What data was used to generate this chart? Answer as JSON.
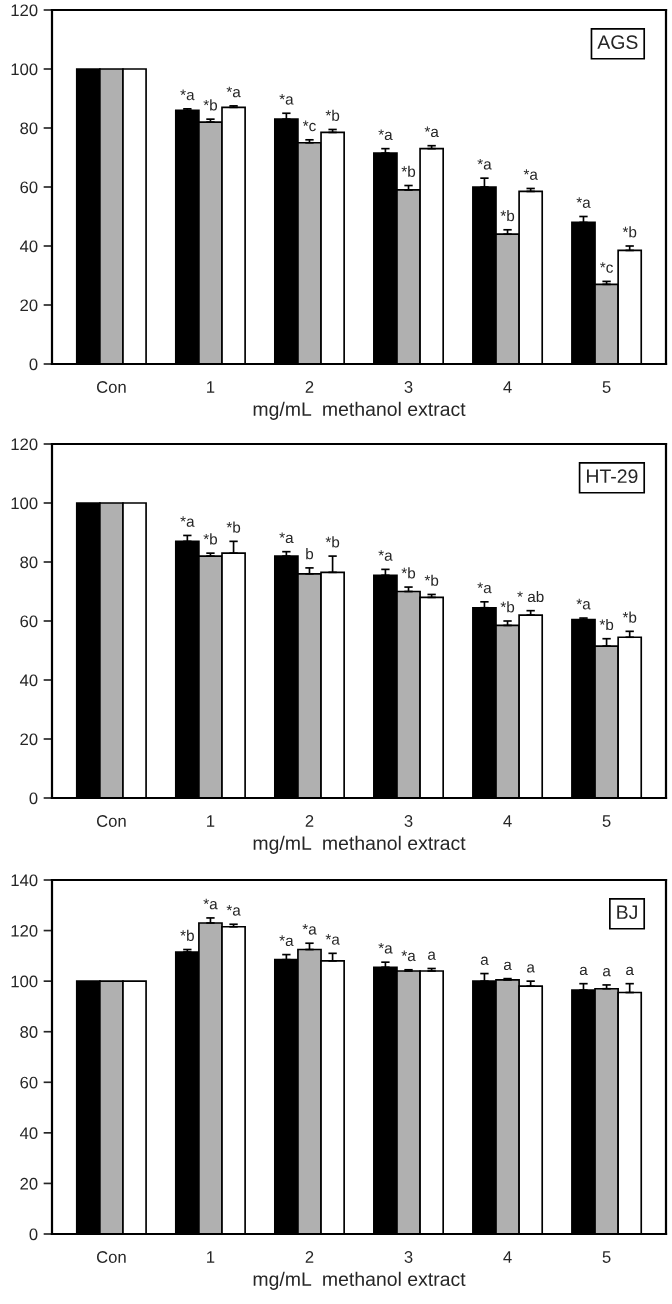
{
  "chart_data": [
    {
      "type": "bar",
      "title": "AGS",
      "xlabel": "mg/mL  methanol extract",
      "categories": [
        "Con",
        "1",
        "2",
        "3",
        "4",
        "5"
      ],
      "ylim": [
        0,
        120
      ],
      "yticks": [
        0,
        20,
        40,
        60,
        80,
        100,
        120
      ],
      "grid": false,
      "legend": false,
      "series": [
        {
          "color": "#000000",
          "values": [
            100,
            86,
            83,
            71.5,
            60,
            48
          ],
          "errors": [
            null,
            0.5,
            2,
            1.5,
            3,
            2
          ],
          "value_labels": [
            null,
            "*a",
            "*a",
            "*a",
            "*a",
            "*a"
          ]
        },
        {
          "color": "#b0b0b0",
          "values": [
            100,
            82,
            75,
            59,
            44,
            27
          ],
          "errors": [
            null,
            1,
            1,
            1.5,
            1.5,
            1
          ],
          "value_labels": [
            null,
            "*b",
            "*c",
            "*b",
            "*b",
            "*c"
          ]
        },
        {
          "color": "#ffffff",
          "values": [
            100,
            87,
            78.5,
            73,
            58.5,
            38.5
          ],
          "errors": [
            null,
            0.5,
            1,
            1,
            1,
            1.5
          ],
          "value_labels": [
            null,
            "*a",
            "*b",
            "*a",
            "*a",
            "*b"
          ]
        }
      ]
    },
    {
      "type": "bar",
      "title": "HT-29",
      "xlabel": "mg/mL  methanol extract",
      "categories": [
        "Con",
        "1",
        "2",
        "3",
        "4",
        "5"
      ],
      "ylim": [
        0,
        120
      ],
      "yticks": [
        0,
        20,
        40,
        60,
        80,
        100,
        120
      ],
      "grid": false,
      "legend": false,
      "series": [
        {
          "color": "#000000",
          "values": [
            100,
            87,
            82,
            75.5,
            64.5,
            60.5
          ],
          "errors": [
            null,
            2,
            1.5,
            2,
            2,
            0.5
          ],
          "value_labels": [
            null,
            "*a",
            "*a",
            "*a",
            "*a",
            "*a"
          ]
        },
        {
          "color": "#b0b0b0",
          "values": [
            100,
            82,
            76,
            70,
            58.5,
            51.5
          ],
          "errors": [
            null,
            1,
            2,
            1.5,
            1.5,
            2.5
          ],
          "value_labels": [
            null,
            "*b",
            "b",
            "*b",
            "*b",
            "*b"
          ]
        },
        {
          "color": "#ffffff",
          "values": [
            100,
            83,
            76.5,
            68,
            62,
            54.5
          ],
          "errors": [
            null,
            4,
            5.5,
            1,
            1.5,
            2
          ],
          "value_labels": [
            null,
            "*b",
            "*b",
            "*b",
            "* ab",
            "*b"
          ]
        }
      ]
    },
    {
      "type": "bar",
      "title": "BJ",
      "xlabel": "mg/mL  methanol extract",
      "categories": [
        "Con",
        "1",
        "2",
        "3",
        "4",
        "5"
      ],
      "ylim": [
        0,
        140
      ],
      "yticks": [
        0,
        20,
        40,
        60,
        80,
        100,
        120,
        140
      ],
      "grid": false,
      "legend": false,
      "series": [
        {
          "color": "#000000",
          "values": [
            100,
            111.5,
            108.5,
            105.5,
            100,
            96.5
          ],
          "errors": [
            null,
            1,
            2,
            2,
            3,
            2.5
          ],
          "value_labels": [
            null,
            "*b",
            "*a",
            "*a",
            "a",
            "a"
          ]
        },
        {
          "color": "#b0b0b0",
          "values": [
            100,
            123,
            112.5,
            104,
            100.5,
            97
          ],
          "errors": [
            null,
            2,
            2.5,
            0.5,
            0.5,
            1.5
          ],
          "value_labels": [
            null,
            "*a",
            "*a",
            "*a",
            "a",
            "a"
          ]
        },
        {
          "color": "#ffffff",
          "values": [
            100,
            121.5,
            108,
            104,
            98,
            95.5
          ],
          "errors": [
            null,
            1,
            3,
            1,
            2,
            3.5
          ],
          "value_labels": [
            null,
            "*a",
            "*a",
            "a",
            "a",
            "a"
          ]
        }
      ]
    }
  ]
}
